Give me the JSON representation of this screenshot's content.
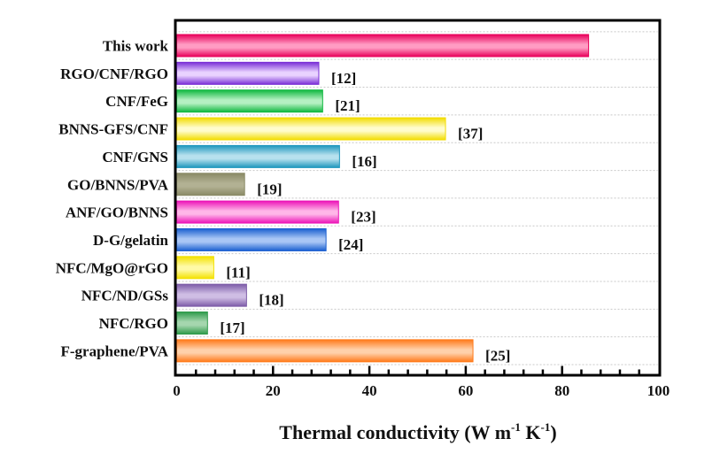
{
  "chart_data": {
    "type": "bar",
    "orientation": "horizontal",
    "title": "",
    "xlabel": "Thermal conductivity (W m-1 K-1)",
    "xlabel_parts": [
      "Thermal conductivity (W m",
      "-1",
      " K",
      "-1",
      ")"
    ],
    "ylabel": "",
    "xlim": [
      0,
      100
    ],
    "xticks": [
      0,
      20,
      40,
      60,
      80,
      100
    ],
    "xtick_labels": [
      "0",
      "20",
      "40",
      "60",
      "80",
      "100"
    ],
    "grid": "horizontal-dotted",
    "legend": "none",
    "categories": [
      "This work",
      "RGO/CNF/RGO",
      "CNF/FeG",
      "BNNS-GFS/CNF",
      "CNF/GNS",
      "GO/BNNS/PVA",
      "ANF/GO/BNNS",
      "D-G/gelatin",
      "NFC/MgO@rGO",
      "NFC/ND/GSs",
      "NFC/RGO",
      "F-graphene/PVA"
    ],
    "values": [
      85.5,
      29.5,
      30.3,
      55.8,
      33.8,
      14.1,
      33.6,
      31.0,
      7.7,
      14.5,
      6.4,
      61.5
    ],
    "annotations": [
      "",
      "[12]",
      "[21]",
      "[37]",
      "[16]",
      "[19]",
      "[23]",
      "[24]",
      "[11]",
      "[18]",
      "[17]",
      "[25]"
    ],
    "colors": [
      {
        "dark": "#e8005a",
        "light": "#ff9cc3"
      },
      {
        "dark": "#7a2fd6",
        "light": "#e9d2ff"
      },
      {
        "dark": "#10b840",
        "light": "#b5f0c2"
      },
      {
        "dark": "#f2dc00",
        "light": "#fffccc"
      },
      {
        "dark": "#1e97bd",
        "light": "#b7e1ee"
      },
      {
        "dark": "#8a8a66",
        "light": "#b2b193"
      },
      {
        "dark": "#ec14b8",
        "light": "#ffb6e8"
      },
      {
        "dark": "#1a5fd0",
        "light": "#a9c6f5"
      },
      {
        "dark": "#f3e100",
        "light": "#fffaa6"
      },
      {
        "dark": "#7d5ca8",
        "light": "#cfbde4"
      },
      {
        "dark": "#2e9a4a",
        "light": "#a5d6ae"
      },
      {
        "dark": "#ff7a1a",
        "light": "#ffd1aa"
      }
    ]
  }
}
